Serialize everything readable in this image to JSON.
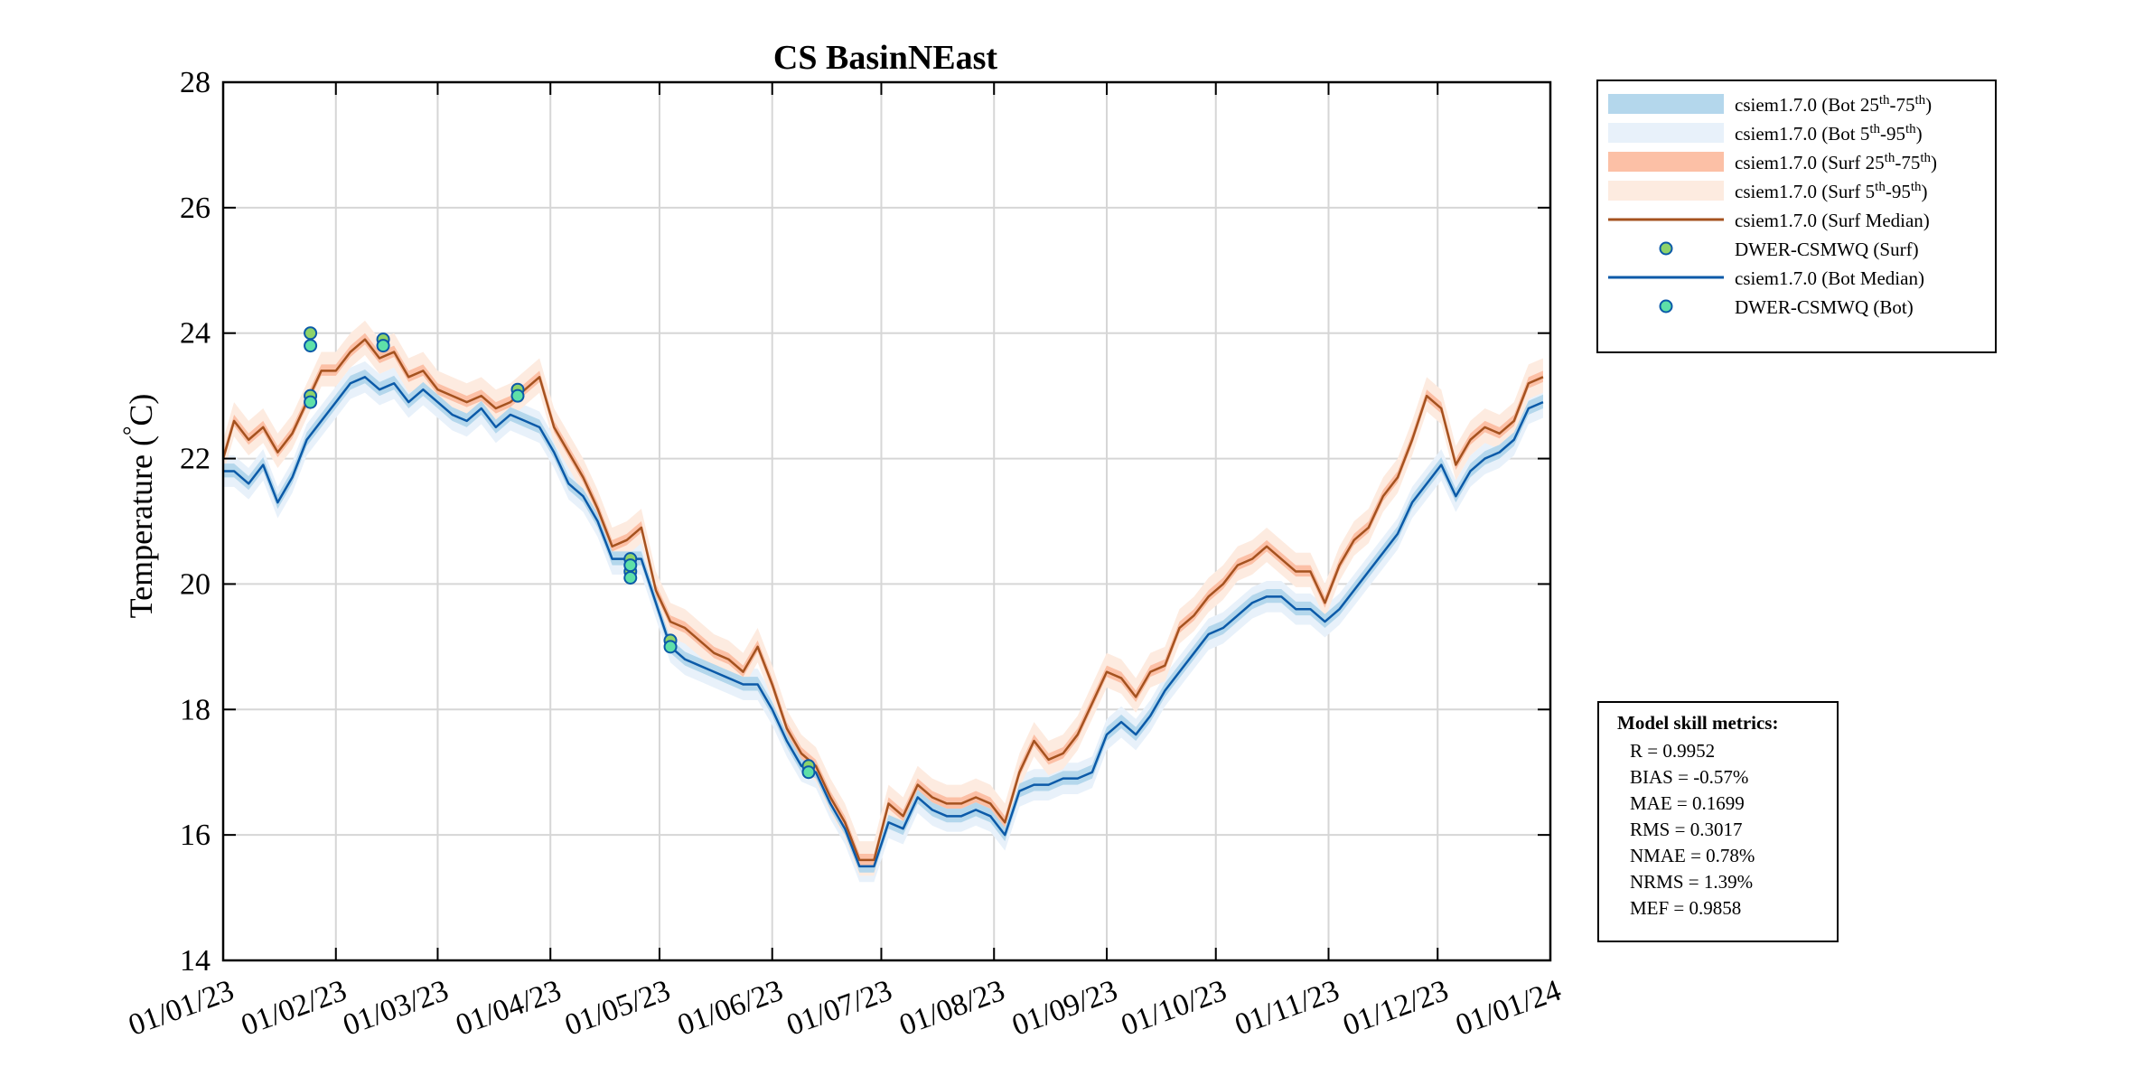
{
  "chart_data": {
    "type": "line",
    "title": "CS BasinNEast",
    "ylabel_text": "Temperature (",
    "ylabel_degree": "°",
    "ylabel_unit": "C)",
    "xlabel": "",
    "x_range": [
      "2023-01-01",
      "2024-01-01"
    ],
    "ylim": [
      14,
      28
    ],
    "yticks": [
      14,
      16,
      18,
      20,
      22,
      24,
      26,
      28
    ],
    "xticks": [
      {
        "date": "2023-01-01",
        "label": "01/01/23"
      },
      {
        "date": "2023-02-01",
        "label": "01/02/23"
      },
      {
        "date": "2023-03-01",
        "label": "01/03/23"
      },
      {
        "date": "2023-04-01",
        "label": "01/04/23"
      },
      {
        "date": "2023-05-01",
        "label": "01/05/23"
      },
      {
        "date": "2023-06-01",
        "label": "01/06/23"
      },
      {
        "date": "2023-07-01",
        "label": "01/07/23"
      },
      {
        "date": "2023-08-01",
        "label": "01/08/23"
      },
      {
        "date": "2023-09-01",
        "label": "01/09/23"
      },
      {
        "date": "2023-10-01",
        "label": "01/10/23"
      },
      {
        "date": "2023-11-01",
        "label": "01/11/23"
      },
      {
        "date": "2023-12-01",
        "label": "01/12/23"
      },
      {
        "date": "2024-01-01",
        "label": "01/01/24"
      }
    ],
    "grid": true,
    "legend_position": "outside-top-right",
    "colors": {
      "bot_iqr": "#b4d7ec",
      "bot_90": "#e8f1fa",
      "surf_iqr": "#fcc0a6",
      "surf_90": "#fdebe0",
      "surf_median": "#a5521f",
      "bot_median": "#0b5aa8",
      "obs_surf": "#8ed36a",
      "obs_bot": "#5ee0a8"
    },
    "legend": [
      {
        "kind": "patch",
        "color": "#b4d7ec",
        "base": "csiem1.7.0 (Bot 25",
        "sup1": "th",
        "mid": "-75",
        "sup2": "th",
        "end": ")"
      },
      {
        "kind": "patch",
        "color": "#e8f1fa",
        "base": "csiem1.7.0 (Bot 5",
        "sup1": "th",
        "mid": "-95",
        "sup2": "th",
        "end": ")"
      },
      {
        "kind": "patch",
        "color": "#fcc0a6",
        "base": "csiem1.7.0 (Surf 25",
        "sup1": "th",
        "mid": "-75",
        "sup2": "th",
        "end": ")"
      },
      {
        "kind": "patch",
        "color": "#fdebe0",
        "base": "csiem1.7.0 (Surf 5",
        "sup1": "th",
        "mid": "-95",
        "sup2": "th",
        "end": ")"
      },
      {
        "kind": "line",
        "color": "#a5521f",
        "base": "csiem1.7.0 (Surf Median)"
      },
      {
        "kind": "marker",
        "color": "#8ed36a",
        "base": "DWER-CSMWQ (Surf)"
      },
      {
        "kind": "line",
        "color": "#0b5aa8",
        "base": "csiem1.7.0 (Bot Median)"
      },
      {
        "kind": "marker",
        "color": "#5ee0a8",
        "base": "DWER-CSMWQ (Bot)"
      }
    ],
    "series": [
      {
        "name": "csiem1.7.0 (Surf Median)",
        "x": [
          "2023-01-01",
          "2023-01-04",
          "2023-01-08",
          "2023-01-12",
          "2023-01-16",
          "2023-01-20",
          "2023-01-24",
          "2023-01-28",
          "2023-02-01",
          "2023-02-05",
          "2023-02-09",
          "2023-02-13",
          "2023-02-17",
          "2023-02-21",
          "2023-02-25",
          "2023-03-01",
          "2023-03-05",
          "2023-03-09",
          "2023-03-13",
          "2023-03-17",
          "2023-03-21",
          "2023-03-25",
          "2023-03-29",
          "2023-04-02",
          "2023-04-06",
          "2023-04-10",
          "2023-04-14",
          "2023-04-18",
          "2023-04-22",
          "2023-04-26",
          "2023-04-30",
          "2023-05-04",
          "2023-05-08",
          "2023-05-12",
          "2023-05-16",
          "2023-05-20",
          "2023-05-24",
          "2023-05-28",
          "2023-06-01",
          "2023-06-05",
          "2023-06-09",
          "2023-06-13",
          "2023-06-17",
          "2023-06-21",
          "2023-06-25",
          "2023-06-29",
          "2023-07-03",
          "2023-07-07",
          "2023-07-11",
          "2023-07-15",
          "2023-07-19",
          "2023-07-23",
          "2023-07-27",
          "2023-07-31",
          "2023-08-04",
          "2023-08-08",
          "2023-08-12",
          "2023-08-16",
          "2023-08-20",
          "2023-08-24",
          "2023-08-28",
          "2023-09-01",
          "2023-09-05",
          "2023-09-09",
          "2023-09-13",
          "2023-09-17",
          "2023-09-21",
          "2023-09-25",
          "2023-09-29",
          "2023-10-03",
          "2023-10-07",
          "2023-10-11",
          "2023-10-15",
          "2023-10-19",
          "2023-10-23",
          "2023-10-27",
          "2023-10-31",
          "2023-11-04",
          "2023-11-08",
          "2023-11-12",
          "2023-11-16",
          "2023-11-20",
          "2023-11-24",
          "2023-11-28",
          "2023-12-02",
          "2023-12-06",
          "2023-12-10",
          "2023-12-14",
          "2023-12-18",
          "2023-12-22",
          "2023-12-26",
          "2023-12-30"
        ],
        "values": [
          22.0,
          22.6,
          22.3,
          22.5,
          22.1,
          22.4,
          22.9,
          23.4,
          23.4,
          23.7,
          23.9,
          23.6,
          23.7,
          23.3,
          23.4,
          23.1,
          23.0,
          22.9,
          23.0,
          22.8,
          22.9,
          23.1,
          23.3,
          22.5,
          22.1,
          21.7,
          21.2,
          20.6,
          20.7,
          20.9,
          19.9,
          19.4,
          19.3,
          19.1,
          18.9,
          18.8,
          18.6,
          19.0,
          18.4,
          17.7,
          17.3,
          17.1,
          16.6,
          16.2,
          15.6,
          15.6,
          16.5,
          16.3,
          16.8,
          16.6,
          16.5,
          16.5,
          16.6,
          16.5,
          16.2,
          17.0,
          17.5,
          17.2,
          17.3,
          17.6,
          18.1,
          18.6,
          18.5,
          18.2,
          18.6,
          18.7,
          19.3,
          19.5,
          19.8,
          20.0,
          20.3,
          20.4,
          20.6,
          20.4,
          20.2,
          20.2,
          19.7,
          20.3,
          20.7,
          20.9,
          21.4,
          21.7,
          22.3,
          23.0,
          22.8,
          21.9,
          22.3,
          22.5,
          22.4,
          22.6,
          23.2,
          23.3
        ]
      },
      {
        "name": "csiem1.7.0 (Bot Median)",
        "x": [
          "2023-01-01",
          "2023-01-04",
          "2023-01-08",
          "2023-01-12",
          "2023-01-16",
          "2023-01-20",
          "2023-01-24",
          "2023-01-28",
          "2023-02-01",
          "2023-02-05",
          "2023-02-09",
          "2023-02-13",
          "2023-02-17",
          "2023-02-21",
          "2023-02-25",
          "2023-03-01",
          "2023-03-05",
          "2023-03-09",
          "2023-03-13",
          "2023-03-17",
          "2023-03-21",
          "2023-03-25",
          "2023-03-29",
          "2023-04-02",
          "2023-04-06",
          "2023-04-10",
          "2023-04-14",
          "2023-04-18",
          "2023-04-22",
          "2023-04-26",
          "2023-04-30",
          "2023-05-04",
          "2023-05-08",
          "2023-05-12",
          "2023-05-16",
          "2023-05-20",
          "2023-05-24",
          "2023-05-28",
          "2023-06-01",
          "2023-06-05",
          "2023-06-09",
          "2023-06-13",
          "2023-06-17",
          "2023-06-21",
          "2023-06-25",
          "2023-06-29",
          "2023-07-03",
          "2023-07-07",
          "2023-07-11",
          "2023-07-15",
          "2023-07-19",
          "2023-07-23",
          "2023-07-27",
          "2023-07-31",
          "2023-08-04",
          "2023-08-08",
          "2023-08-12",
          "2023-08-16",
          "2023-08-20",
          "2023-08-24",
          "2023-08-28",
          "2023-09-01",
          "2023-09-05",
          "2023-09-09",
          "2023-09-13",
          "2023-09-17",
          "2023-09-21",
          "2023-09-25",
          "2023-09-29",
          "2023-10-03",
          "2023-10-07",
          "2023-10-11",
          "2023-10-15",
          "2023-10-19",
          "2023-10-23",
          "2023-10-27",
          "2023-10-31",
          "2023-11-04",
          "2023-11-08",
          "2023-11-12",
          "2023-11-16",
          "2023-11-20",
          "2023-11-24",
          "2023-11-28",
          "2023-12-02",
          "2023-12-06",
          "2023-12-10",
          "2023-12-14",
          "2023-12-18",
          "2023-12-22",
          "2023-12-26",
          "2023-12-30"
        ],
        "values": [
          21.8,
          21.8,
          21.6,
          21.9,
          21.3,
          21.7,
          22.3,
          22.6,
          22.9,
          23.2,
          23.3,
          23.1,
          23.2,
          22.9,
          23.1,
          22.9,
          22.7,
          22.6,
          22.8,
          22.5,
          22.7,
          22.6,
          22.5,
          22.1,
          21.6,
          21.4,
          21.0,
          20.4,
          20.4,
          20.4,
          19.7,
          19.0,
          18.8,
          18.7,
          18.6,
          18.5,
          18.4,
          18.4,
          18.0,
          17.5,
          17.1,
          17.0,
          16.5,
          16.1,
          15.5,
          15.5,
          16.2,
          16.1,
          16.6,
          16.4,
          16.3,
          16.3,
          16.4,
          16.3,
          16.0,
          16.7,
          16.8,
          16.8,
          16.9,
          16.9,
          17.0,
          17.6,
          17.8,
          17.6,
          17.9,
          18.3,
          18.6,
          18.9,
          19.2,
          19.3,
          19.5,
          19.7,
          19.8,
          19.8,
          19.6,
          19.6,
          19.4,
          19.6,
          19.9,
          20.2,
          20.5,
          20.8,
          21.3,
          21.6,
          21.9,
          21.4,
          21.8,
          22.0,
          22.1,
          22.3,
          22.8,
          22.9
        ]
      }
    ],
    "observations": [
      {
        "name": "DWER-CSMWQ (Surf)",
        "x": [
          "2023-01-25",
          "2023-01-25",
          "2023-02-14",
          "2023-03-23",
          "2023-04-23",
          "2023-04-23",
          "2023-05-04",
          "2023-06-11"
        ],
        "values": [
          24.0,
          23.0,
          23.9,
          23.1,
          20.4,
          20.2,
          19.1,
          17.1
        ]
      },
      {
        "name": "DWER-CSMWQ (Bot)",
        "x": [
          "2023-01-25",
          "2023-01-25",
          "2023-02-14",
          "2023-03-23",
          "2023-04-23",
          "2023-04-23",
          "2023-05-04",
          "2023-06-11"
        ],
        "values": [
          23.8,
          22.9,
          23.8,
          23.0,
          20.3,
          20.1,
          19.0,
          17.0
        ]
      }
    ]
  },
  "metrics": {
    "title": "Model skill metrics:",
    "lines": [
      "R    = 0.9952",
      "BIAS = -0.57%",
      "MAE  = 0.1699",
      "RMS  = 0.3017",
      "NMAE = 0.78%",
      "NRMS = 1.39%",
      "MEF  = 0.9858"
    ]
  }
}
